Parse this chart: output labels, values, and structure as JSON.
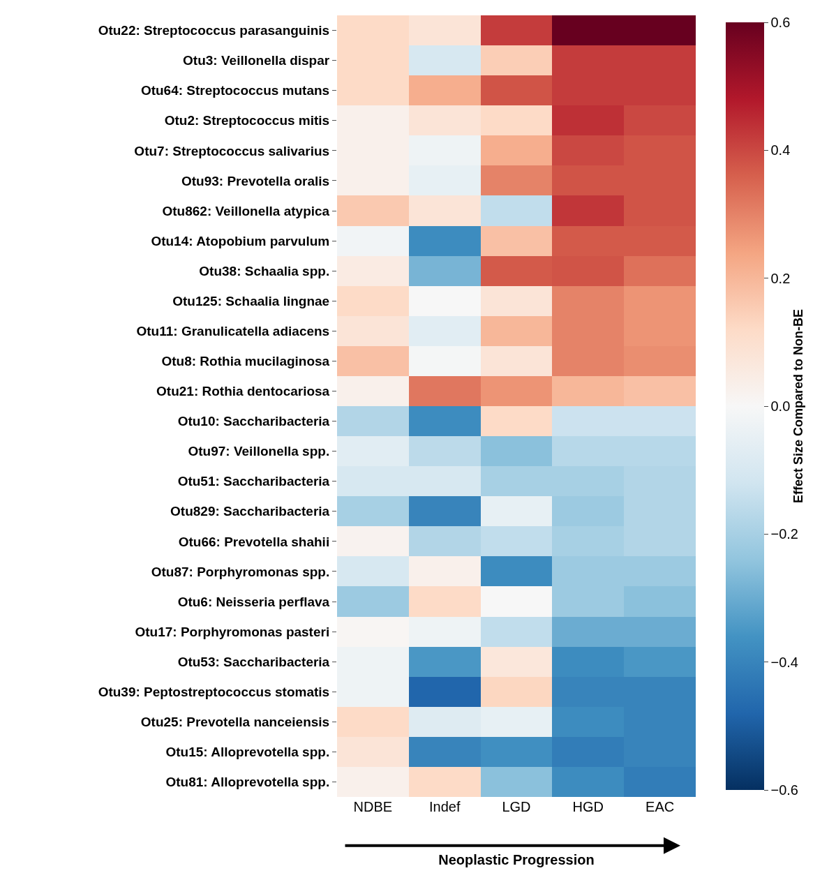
{
  "chart_data": {
    "type": "heatmap",
    "xlabel": "Neoplastic Progression",
    "clabel": "Effect Size Compared to Non-BE",
    "categories": [
      "NDBE",
      "Indef",
      "LGD",
      "HGD",
      "EAC"
    ],
    "y_categories": [
      "Otu22: Streptococcus parasanguinis",
      "Otu3: Veillonella dispar",
      "Otu64: Streptococcus mutans",
      "Otu2: Streptococcus mitis",
      "Otu7: Streptococcus salivarius",
      "Otu93: Prevotella oralis",
      "Otu862: Veillonella atypica",
      "Otu14: Atopobium parvulum",
      "Otu38: Schaalia spp.",
      "Otu125: Schaalia lingnae",
      "Otu11: Granulicatella adiacens",
      "Otu8: Rothia mucilaginosa",
      "Otu21: Rothia dentocariosa",
      "Otu10: Saccharibacteria",
      "Otu97: Veillonella spp.",
      "Otu51: Saccharibacteria",
      "Otu829: Saccharibacteria",
      "Otu66: Prevotella shahii",
      "Otu87: Porphyromonas spp.",
      "Otu6: Neisseria perflava",
      "Otu17: Porphyromonas pasteri",
      "Otu53: Saccharibacteria",
      "Otu39: Peptostreptococcus stomatis",
      "Otu25: Prevotella nanceiensis",
      "Otu15: Alloprevotella spp.",
      "Otu81: Alloprevotella spp."
    ],
    "cells": [
      [
        0.12,
        0.08,
        0.42,
        0.6,
        0.6
      ],
      [
        0.12,
        -0.1,
        0.15,
        0.42,
        0.42
      ],
      [
        0.12,
        0.22,
        0.38,
        0.42,
        0.42
      ],
      [
        0.03,
        0.08,
        0.12,
        0.44,
        0.4
      ],
      [
        0.03,
        -0.03,
        0.22,
        0.4,
        0.38
      ],
      [
        0.03,
        -0.05,
        0.3,
        0.38,
        0.38
      ],
      [
        0.16,
        0.08,
        -0.15,
        0.43,
        0.38
      ],
      [
        -0.02,
        -0.38,
        0.18,
        0.37,
        0.37
      ],
      [
        0.05,
        -0.28,
        0.37,
        0.38,
        0.33
      ],
      [
        0.12,
        0.0,
        0.08,
        0.3,
        0.27
      ],
      [
        0.08,
        -0.07,
        0.2,
        0.3,
        0.27
      ],
      [
        0.18,
        -0.01,
        0.08,
        0.3,
        0.28
      ],
      [
        0.03,
        0.32,
        0.27,
        0.2,
        0.18
      ],
      [
        -0.18,
        -0.38,
        0.12,
        -0.13,
        -0.13
      ],
      [
        -0.07,
        -0.16,
        -0.25,
        -0.17,
        -0.17
      ],
      [
        -0.1,
        -0.1,
        -0.2,
        -0.2,
        -0.18
      ],
      [
        -0.2,
        -0.4,
        -0.05,
        -0.22,
        -0.18
      ],
      [
        0.02,
        -0.18,
        -0.15,
        -0.2,
        -0.18
      ],
      [
        -0.1,
        0.03,
        -0.38,
        -0.22,
        -0.22
      ],
      [
        -0.22,
        0.12,
        0.0,
        -0.22,
        -0.25
      ],
      [
        0.01,
        -0.03,
        -0.15,
        -0.3,
        -0.3
      ],
      [
        -0.03,
        -0.35,
        0.07,
        -0.38,
        -0.35
      ],
      [
        -0.03,
        -0.48,
        0.13,
        -0.4,
        -0.4
      ],
      [
        0.12,
        -0.08,
        -0.05,
        -0.38,
        -0.4
      ],
      [
        0.08,
        -0.4,
        -0.37,
        -0.42,
        -0.4
      ],
      [
        0.03,
        0.12,
        -0.25,
        -0.38,
        -0.42
      ]
    ],
    "clim": [
      -0.6,
      0.6
    ],
    "cticks": [
      {
        "value": -0.6,
        "label": "−0.6"
      },
      {
        "value": -0.4,
        "label": "−0.4"
      },
      {
        "value": -0.2,
        "label": "−0.2"
      },
      {
        "value": 0.0,
        "label": "0.0"
      },
      0.2,
      0.4,
      0.6
    ]
  }
}
